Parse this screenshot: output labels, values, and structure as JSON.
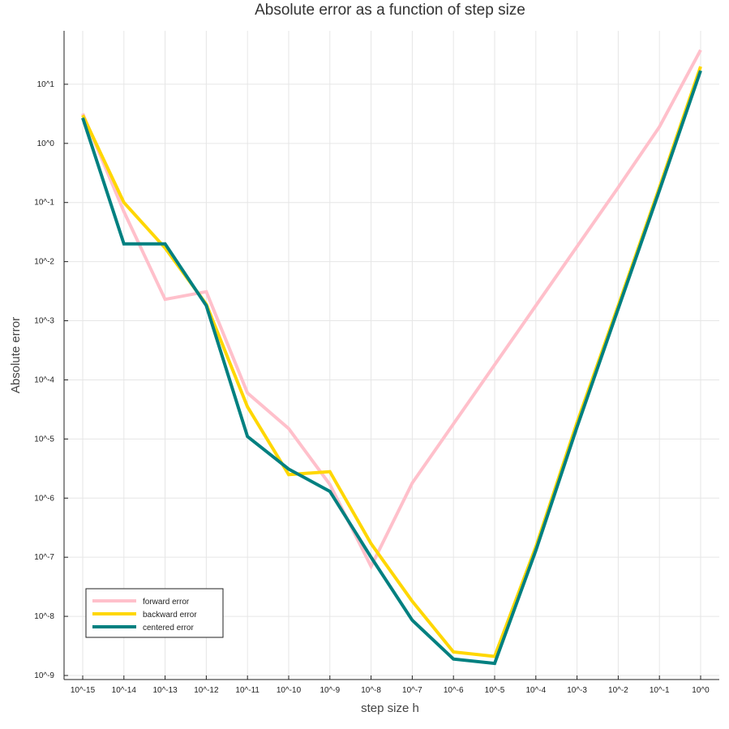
{
  "chart_data": {
    "type": "line",
    "title": "Absolute error as a function of step size",
    "xlabel": "step size h",
    "ylabel": "Absolute error",
    "x_scale": "log",
    "y_scale": "log",
    "xlim": [
      1e-15,
      1
    ],
    "ylim": [
      1e-09,
      100.0
    ],
    "x": [
      1e-15,
      1e-14,
      1e-13,
      1e-12,
      1e-11,
      1e-10,
      1e-09,
      1e-08,
      1e-07,
      1e-06,
      1e-05,
      0.0001,
      0.001,
      0.01,
      0.1,
      1
    ],
    "x_tick_labels": [
      "10^-15",
      "10^-14",
      "10^-13",
      "10^-12",
      "10^-11",
      "10^-10",
      "10^-9",
      "10^-8",
      "10^-7",
      "10^-6",
      "10^-5",
      "10^-4",
      "10^-3",
      "10^-2",
      "10^-1",
      "10^0"
    ],
    "y_ticks": [
      1e-09,
      1e-08,
      1e-07,
      1e-06,
      1e-05,
      0.0001,
      0.001,
      0.01,
      0.1,
      1,
      10
    ],
    "y_tick_labels": [
      "10^-9",
      "10^-8",
      "10^-7",
      "10^-6",
      "10^-5",
      "10^-4",
      "10^-3",
      "10^-2",
      "10^-1",
      "10^0",
      "10^1"
    ],
    "grid": true,
    "legend_position": "bottom-left",
    "series": [
      {
        "name": "forward error",
        "color": "#ffc0cb",
        "values": [
          3.2,
          0.07,
          0.0023,
          0.0031,
          6e-05,
          1.5e-05,
          1.7e-06,
          7e-08,
          1.8e-06,
          1.8e-05,
          0.00018,
          0.0018,
          0.018,
          0.18,
          1.9,
          38
        ]
      },
      {
        "name": "backward error",
        "color": "#ffd700",
        "values": [
          3.0,
          0.1,
          0.017,
          0.0019,
          3.5e-05,
          2.5e-06,
          2.8e-06,
          1.7e-07,
          1.8e-08,
          2.5e-09,
          2.1e-09,
          1.5e-07,
          1.9e-05,
          0.0018,
          0.18,
          20
        ]
      },
      {
        "name": "centered error",
        "color": "#008080",
        "values": [
          2.7,
          0.02,
          0.02,
          0.0018,
          1.1e-05,
          3.1e-06,
          1.3e-06,
          1e-07,
          8.6e-09,
          1.9e-09,
          1.6e-09,
          1.3e-07,
          1.6e-05,
          0.0016,
          0.16,
          17
        ]
      }
    ]
  }
}
